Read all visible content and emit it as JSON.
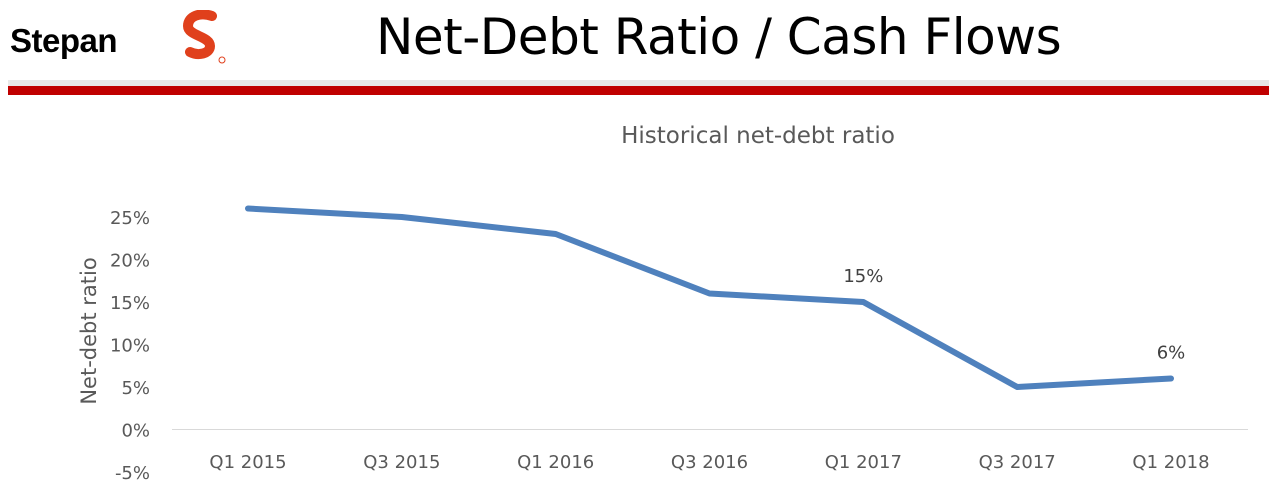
{
  "header": {
    "logo_text": "Stepan",
    "logo_mark": "S",
    "title": "Net-Debt Ratio / Cash Flows"
  },
  "colors": {
    "accent_red": "#c00000",
    "line_blue": "#4f81bd",
    "text_gray": "#595959"
  },
  "chart_data": {
    "type": "line",
    "title": "Historical net-debt ratio",
    "xlabel": "",
    "ylabel": "Net-debt ratio",
    "categories": [
      "Q1 2015",
      "Q3 2015",
      "Q1 2016",
      "Q3 2016",
      "Q1 2017",
      "Q3 2017",
      "Q1 2018"
    ],
    "series": [
      {
        "values": [
          0.26,
          0.25,
          0.23,
          0.16,
          0.15,
          0.05,
          0.06
        ]
      }
    ],
    "ylim": [
      -0.05,
      0.25
    ],
    "yticks": [
      "-5%",
      "0%",
      "5%",
      "10%",
      "15%",
      "20%",
      "25%"
    ],
    "data_labels": [
      {
        "category_index": 4,
        "text": "15%"
      },
      {
        "category_index": 6,
        "text": "6%"
      }
    ],
    "grid": false,
    "legend": "none"
  }
}
